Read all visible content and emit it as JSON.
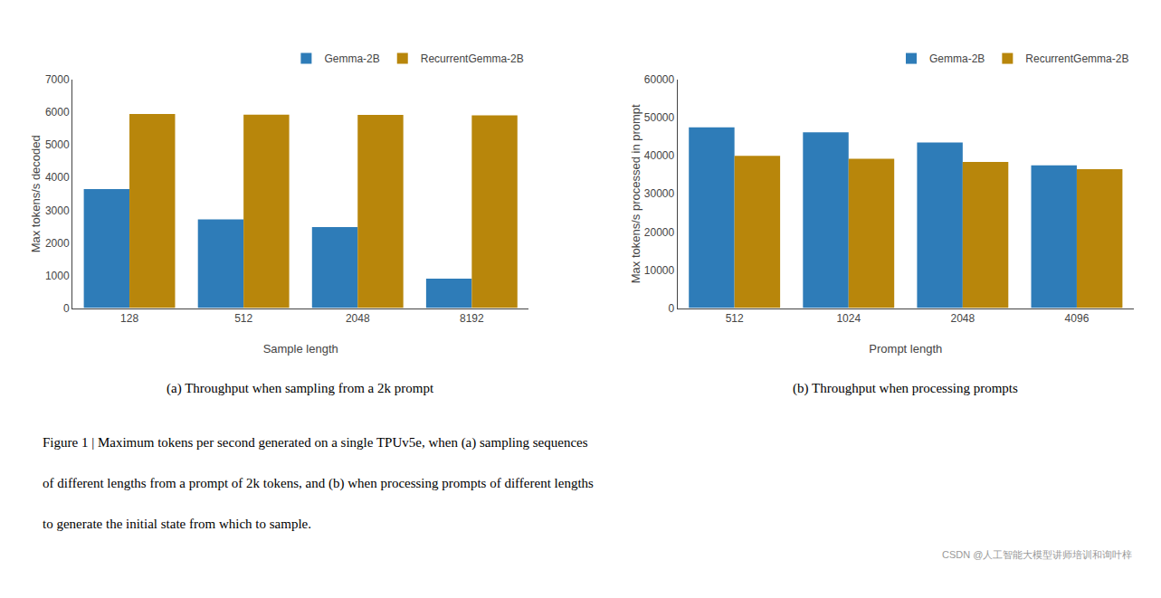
{
  "chart_data": [
    {
      "type": "bar",
      "categories": [
        "128",
        "512",
        "2048",
        "8192"
      ],
      "series": [
        {
          "name": "Gemma-2B",
          "color": "#2e7cb8",
          "values": [
            3650,
            2720,
            2480,
            900
          ]
        },
        {
          "name": "RecurrentGemma-2B",
          "color": "#b8860b",
          "values": [
            5950,
            5930,
            5920,
            5910
          ]
        }
      ],
      "xlabel": "Sample length",
      "ylabel": "Max tokens/s decoded",
      "ylim": [
        0,
        7000
      ],
      "yticks": [
        0,
        1000,
        2000,
        3000,
        4000,
        5000,
        6000,
        7000
      ],
      "grid": false,
      "legend": "upper right",
      "annotations": [
        "(a) Throughput when sampling from a 2k prompt"
      ]
    },
    {
      "type": "bar",
      "categories": [
        "512",
        "1024",
        "2048",
        "4096"
      ],
      "series": [
        {
          "name": "Gemma-2B",
          "color": "#2e7cb8",
          "values": [
            47500,
            46200,
            43500,
            37500
          ]
        },
        {
          "name": "RecurrentGemma-2B",
          "color": "#b8860b",
          "values": [
            40000,
            39200,
            38400,
            36500
          ]
        }
      ],
      "xlabel": "Prompt length",
      "ylabel": "Max tokens/s processed in prompt",
      "ylim": [
        0,
        60000
      ],
      "yticks": [
        0,
        10000,
        20000,
        30000,
        40000,
        50000,
        60000
      ],
      "grid": false,
      "legend": "upper right",
      "annotations": [
        "(b) Throughput when processing prompts"
      ]
    }
  ],
  "annotations": [
    "Figure 1 | Maximum tokens per second generated on a single TPUv5e, when (a) sampling sequences",
    "of different lengths from a prompt of 2k tokens, and (b) when processing prompts of different lengths",
    "to generate the initial state from which to sample.",
    "CSDN @人工智能大模型讲师培训和询叶梓"
  ]
}
